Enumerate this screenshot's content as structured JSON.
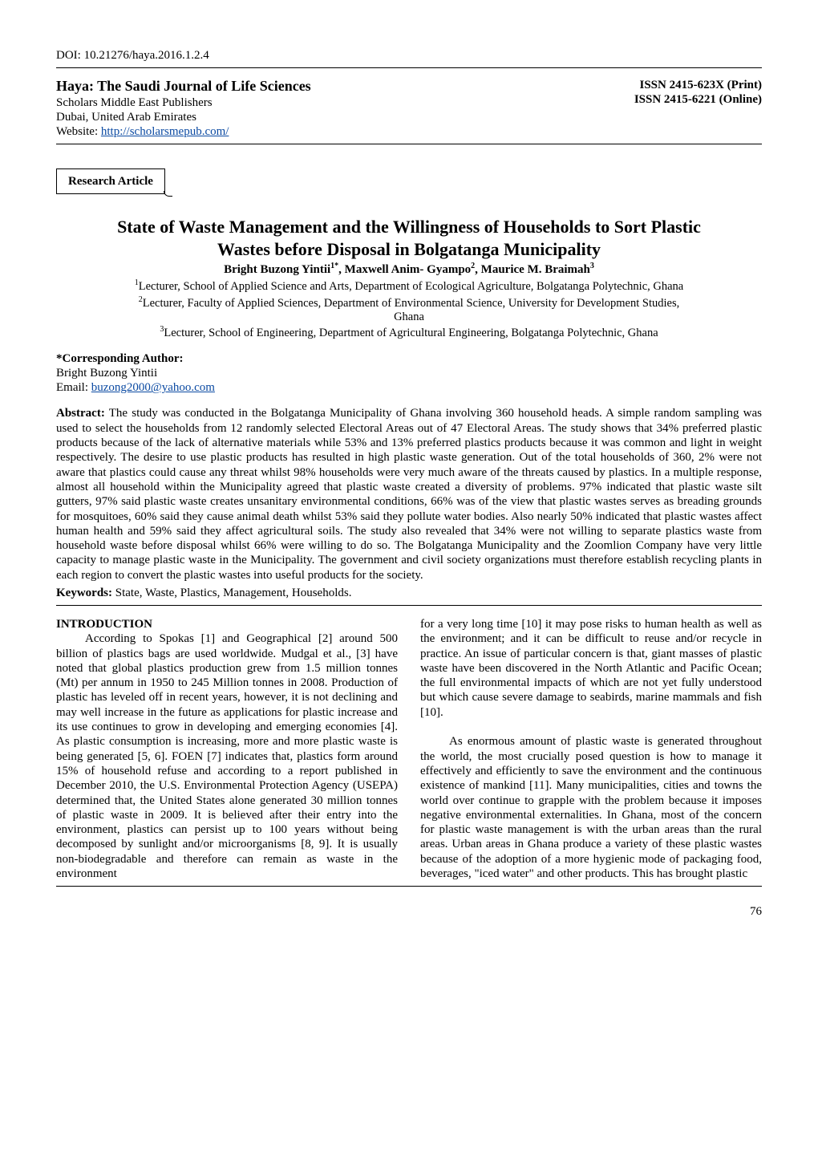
{
  "doi": "DOI: 10.21276/haya.2016.1.2.4",
  "header": {
    "journal_title": "Haya: The Saudi Journal of Life Sciences",
    "publisher": "Scholars Middle East Publishers",
    "location": "Dubai, United Arab Emirates",
    "website_label": "Website:",
    "website_url": "http://scholarsmepub.com/",
    "issn_print": "ISSN 2415-623X (Print)",
    "issn_online": "ISSN 2415-6221 (Online)"
  },
  "badge": "Research Article",
  "title_line1": "State of Waste Management and the Willingness of Households to Sort Plastic",
  "title_line2": "Wastes before Disposal in Bolgatanga Municipality",
  "authors": "Bright Buzong Yintii1*, Maxwell Anim- Gyampo2, Maurice M. Braimah3",
  "affiliations": [
    "1Lecturer, School of Applied Science and Arts, Department of Ecological Agriculture, Bolgatanga Polytechnic, Ghana",
    "2Lecturer, Faculty of Applied Sciences, Department of Environmental Science, University for Development Studies, Ghana",
    "3Lecturer, School of Engineering, Department of Agricultural Engineering, Bolgatanga Polytechnic, Ghana"
  ],
  "corresponding": {
    "label": "*Corresponding Author:",
    "name": "Bright Buzong Yintii",
    "email_label": "Email:",
    "email": "buzong2000@yahoo.com"
  },
  "abstract_label": "Abstract:",
  "abstract_text": " The study was conducted in the Bolgatanga Municipality of Ghana involving 360 household heads. A simple random sampling was used to select the households from 12 randomly selected Electoral Areas out of 47 Electoral Areas. The study shows that 34% preferred plastic products because of the lack of alternative materials while 53% and 13% preferred plastics products because it was common and light in weight respectively. The desire to use plastic products has resulted in high plastic waste generation. Out of the total households of 360, 2% were not aware that plastics could cause any threat whilst 98% households were very much aware of the threats caused by plastics. In a multiple response, almost all household within the Municipality agreed that plastic waste created a diversity of problems. 97% indicated that plastic waste silt gutters, 97% said plastic waste creates unsanitary environmental conditions, 66% was of the view that plastic wastes serves as breading grounds for mosquitoes, 60% said they cause animal death whilst 53% said they pollute water bodies. Also nearly 50% indicated that plastic wastes affect human health and 59% said they affect agricultural soils. The study also revealed that 34% were not willing to separate plastics waste from household waste before disposal whilst 66% were willing to do so. The Bolgatanga Municipality and the Zoomlion Company have very little capacity to manage plastic waste in the Municipality. The government and civil society organizations must therefore establish recycling plants in each region to convert the plastic wastes into useful products for the society.",
  "keywords_label": "Keywords:",
  "keywords": " State, Waste, Plastics, Management, Households.",
  "intro_head": "INTRODUCTION",
  "col_left_p1": "According to Spokas [1] and Geographical [2] around 500 billion of plastics bags are used worldwide. Mudgal et al., [3] have noted that global plastics production grew from 1.5 million tonnes (Mt) per annum in 1950 to 245 Million tonnes in 2008. Production of plastic has leveled off in recent years, however, it is not declining and may well increase in the future as applications for plastic increase and its use continues to grow in developing and emerging economies [4]. As plastic consumption is increasing, more and more plastic waste is being generated [5, 6]. FOEN [7] indicates that, plastics form around 15% of household refuse and according to a report published in December 2010, the U.S. Environmental Protection Agency (USEPA) determined that, the United States alone generated 30 million tonnes of plastic waste in 2009.   It is believed after their entry into the environment, plastics can persist up to 100 years without being decomposed by sunlight and/or microorganisms [8, 9]. It is usually non-biodegradable and therefore can remain as waste in the environment",
  "col_right_p1": "for a very long time [10] it may pose risks to human health as well as the environment; and it can be difficult to reuse and/or recycle in practice. An issue of particular concern is that, giant masses of plastic waste have been discovered in the North Atlantic and Pacific Ocean; the full environmental impacts of which are not yet fully understood but which cause severe damage to seabirds, marine mammals and fish [10].",
  "col_right_p2": "As enormous amount of plastic waste is generated throughout the world, the most crucially posed question is how to manage it effectively and efficiently to save the environment and the continuous existence of mankind [11].  Many municipalities, cities and towns the world over continue to grapple with the problem because it imposes negative environmental externalities. In Ghana, most of the concern for plastic waste management is with the urban areas than the rural areas. Urban areas in Ghana produce a variety of these plastic wastes because of the adoption of a more hygienic mode of packaging food, beverages, \"iced water\" and other products. This has brought plastic",
  "page_number": "76",
  "colors": {
    "link": "#0b4aa2",
    "text": "#000000",
    "background": "#ffffff",
    "rule": "#000000"
  }
}
